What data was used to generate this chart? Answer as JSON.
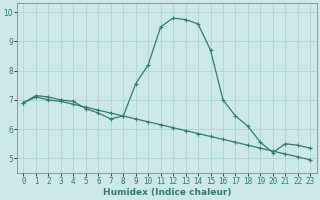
{
  "xlabel": "Humidex (Indice chaleur)",
  "x_values": [
    0,
    1,
    2,
    3,
    4,
    5,
    6,
    7,
    8,
    9,
    10,
    11,
    12,
    13,
    14,
    15,
    16,
    17,
    18,
    19,
    20,
    21,
    22,
    23
  ],
  "line1_y": [
    6.9,
    7.15,
    7.1,
    7.0,
    6.95,
    6.7,
    6.55,
    6.35,
    6.45,
    7.55,
    8.2,
    9.5,
    9.8,
    9.75,
    9.6,
    8.7,
    7.0,
    6.45,
    6.1,
    5.55,
    5.2,
    5.5,
    5.45,
    5.35
  ],
  "line2_y": [
    6.9,
    7.1,
    7.0,
    6.95,
    6.85,
    6.75,
    6.65,
    6.55,
    6.45,
    6.35,
    6.25,
    6.15,
    6.05,
    5.95,
    5.85,
    5.75,
    5.65,
    5.55,
    5.45,
    5.35,
    5.25,
    5.15,
    5.05,
    4.95
  ],
  "line_color": "#2e7d6e",
  "bg_color": "#cce8e8",
  "grid_color": "#aed4d4",
  "ylim": [
    4.5,
    10.3
  ],
  "xlim": [
    -0.5,
    23.5
  ],
  "yticks": [
    5,
    6,
    7,
    8,
    9,
    10
  ],
  "tick_fontsize": 5.5,
  "xlabel_fontsize": 6.5,
  "xlabel_bold": true
}
